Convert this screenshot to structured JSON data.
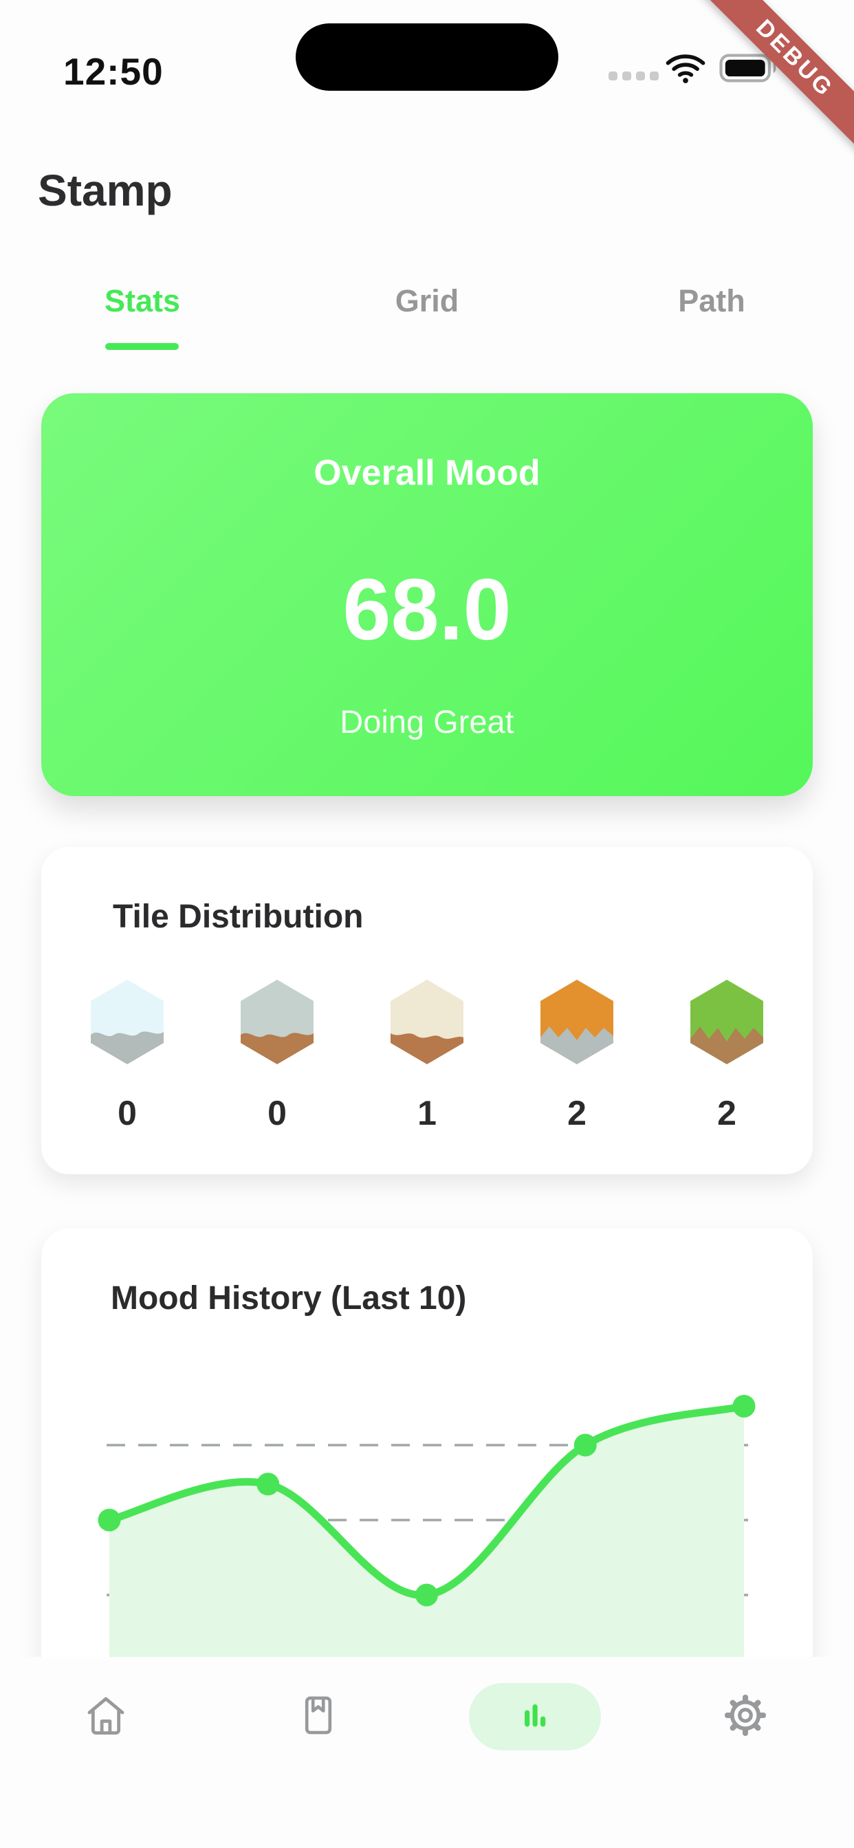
{
  "status_bar": {
    "time": "12:50",
    "cellular_icon": "signal-dots",
    "wifi_icon": "wifi",
    "battery_icon": "battery-full",
    "debug_banner": "DEBUG",
    "debug_banner_color": "#BC5A54"
  },
  "header": {
    "title": "Stamp"
  },
  "tabs": [
    {
      "label": "Stats",
      "active": true
    },
    {
      "label": "Grid",
      "active": false
    },
    {
      "label": "Path",
      "active": false
    }
  ],
  "mood_card": {
    "title": "Overall Mood",
    "value": "68.0",
    "subtitle": "Doing Great",
    "gradient_start": "#79FA7C",
    "gradient_end": "#55F75A"
  },
  "tile_card": {
    "title": "Tile Distribution",
    "tiles": [
      {
        "name": "ice-tile",
        "top_color": "#E4F6FA",
        "bottom_color": "#B2BABA",
        "count": "0"
      },
      {
        "name": "stone-tile",
        "top_color": "#C5D1CD",
        "bottom_color": "#B57C4D",
        "count": "0"
      },
      {
        "name": "sand-tile",
        "top_color": "#EFE8D2",
        "bottom_color": "#B5794B",
        "count": "1"
      },
      {
        "name": "lava-tile",
        "top_color": "#E2912E",
        "bottom_color": "#B4BCBC",
        "count": "2"
      },
      {
        "name": "grass-tile",
        "top_color": "#7CC242",
        "bottom_color": "#AF8153",
        "count": "2"
      }
    ]
  },
  "chart_card": {
    "title": "Mood History (Last 10)"
  },
  "chart_data": {
    "type": "line",
    "title": "Mood History (Last 10)",
    "x": [
      1,
      2,
      3,
      4,
      5
    ],
    "values": [
      50,
      62,
      25,
      75,
      88
    ],
    "gridlines": [
      25,
      50,
      75
    ],
    "ylim": [
      0,
      100
    ],
    "area_fill": true,
    "grid": "dashed-horizontal",
    "legend": "none",
    "line_color": "#49E455",
    "dot_color": "#49E455",
    "fill_color": "#E3F8E5",
    "grid_color": "#9FA8A6"
  },
  "nav": {
    "items": [
      {
        "icon": "home-icon",
        "active": false
      },
      {
        "icon": "journal-icon",
        "active": false
      },
      {
        "icon": "stats-icon",
        "active": true
      },
      {
        "icon": "settings-icon",
        "active": false
      }
    ],
    "active_pill_color": "#DFF8E1",
    "active_icon_color": "#3FE14D",
    "inactive_icon_color": "#97999B"
  },
  "colors": {
    "accent_green": "#45E956",
    "text_dark": "#2B2B2D",
    "text_gray": "#979797",
    "background": "#FDFDFD",
    "card": "#FFFFFF"
  }
}
